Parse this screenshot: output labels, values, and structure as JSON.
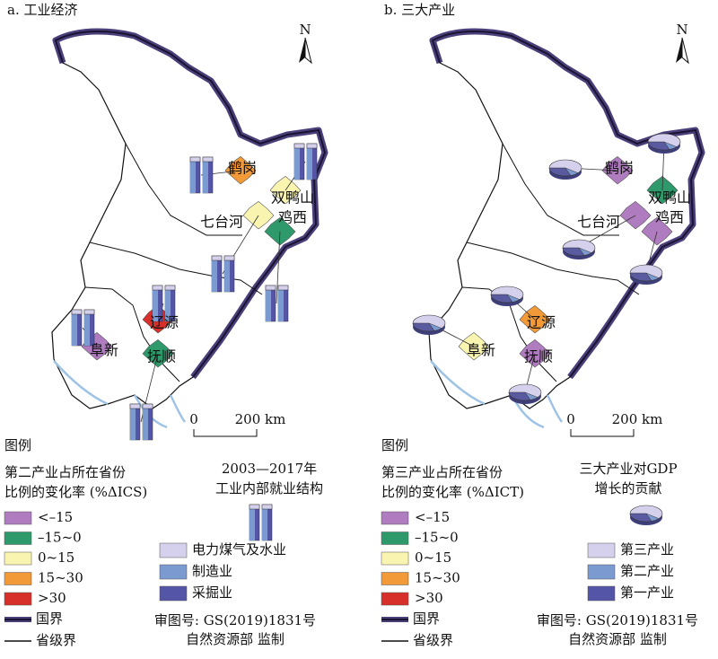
{
  "panels": [
    {
      "title": "a. 工业经济",
      "north": "N",
      "cities": [
        "鹤岗",
        "双鸭山",
        "七台河",
        "鸡西",
        "辽源",
        "抚顺",
        "阜新"
      ],
      "scale": [
        "0",
        "200 km"
      ],
      "legend_title": "图例",
      "change_legend": {
        "heading": [
          "第二产业占所在省份",
          "比例的变化率 (%ΔICS)"
        ],
        "items": [
          "<–15",
          "–15~0",
          "0~15",
          "15~30",
          ">30"
        ]
      },
      "chart_legend": {
        "heading": [
          "2003—2017年",
          "工业内部就业结构"
        ],
        "items": [
          "电力煤气及水业",
          "制造业",
          "采掘业"
        ]
      },
      "boundaries": [
        "国界",
        "省级界"
      ],
      "approval": [
        "审图号: GS(2019)1831号",
        "自然资源部 监制"
      ]
    },
    {
      "title": "b. 三大产业",
      "north": "N",
      "cities": [
        "鹤岗",
        "双鸭山",
        "七台河",
        "鸡西",
        "辽源",
        "抚顺",
        "阜新"
      ],
      "scale": [
        "0",
        "200 km"
      ],
      "legend_title": "图例",
      "change_legend": {
        "heading": [
          "第三产业占所在省份",
          "比例的变化率 (%ΔICT)"
        ],
        "items": [
          "<–15",
          "–15~0",
          "0~15",
          "15~30",
          ">30"
        ]
      },
      "chart_legend": {
        "heading": [
          "三大产业对GDP",
          "增长的贡献"
        ],
        "items": [
          "第三产业",
          "第二产业",
          "第一产业"
        ]
      },
      "boundaries": [
        "国界",
        "省级界"
      ],
      "approval": [
        "审图号: GS(2019)1831号",
        "自然资源部 监制"
      ]
    }
  ]
}
